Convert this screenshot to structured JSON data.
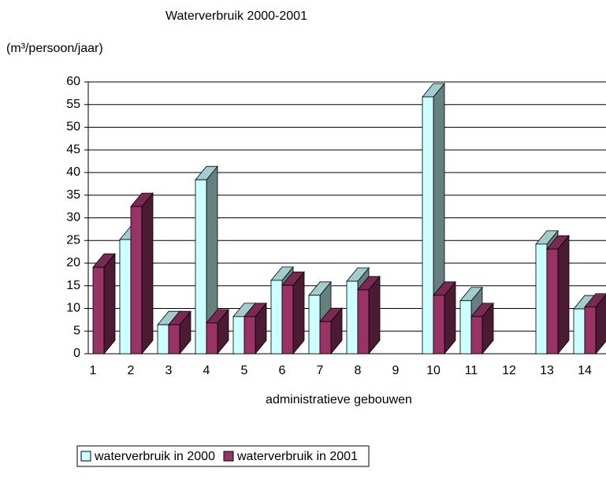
{
  "chart_data": {
    "type": "bar3d",
    "title": "Waterverbruik 2000-2001",
    "y_axis_label": "(m³/persoon/jaar)",
    "x_axis_label": "administratieve gebouwen",
    "categories": [
      "1",
      "2",
      "3",
      "4",
      "5",
      "6",
      "7",
      "8",
      "9",
      "10",
      "11",
      "12",
      "13",
      "14"
    ],
    "series": [
      {
        "name": "waterverbruik in 2000",
        "color": "#ccffff",
        "values": [
          null,
          25.2,
          6.4,
          38.4,
          8.2,
          16.2,
          12.9,
          16,
          null,
          56.7,
          11.7,
          null,
          24.2,
          9.9
        ]
      },
      {
        "name": "waterverbruik in 2001",
        "color": "#993366",
        "values": [
          19.1,
          32.5,
          6.4,
          6.8,
          8.2,
          15.1,
          7.1,
          14.1,
          null,
          12.9,
          8.2,
          null,
          23.1,
          10.3
        ]
      }
    ],
    "ylim": [
      0,
      60
    ],
    "yticks": [
      0,
      5,
      10,
      15,
      20,
      25,
      30,
      35,
      40,
      45,
      50,
      55,
      60
    ],
    "grid": true
  }
}
